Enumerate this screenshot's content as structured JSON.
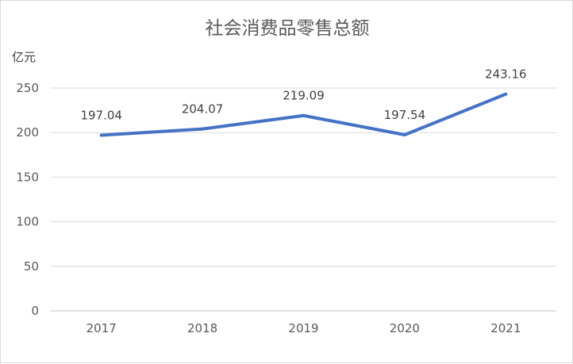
{
  "chart_data": {
    "type": "line",
    "title": "社会消费品零售总额",
    "ylabel": "亿元",
    "xlabel": "",
    "categories": [
      "2017",
      "2018",
      "2019",
      "2020",
      "2021"
    ],
    "series": [
      {
        "values": [
          197.04,
          204.07,
          219.09,
          197.54,
          243.16
        ],
        "data_labels": [
          "197.04",
          "204.07",
          "219.09",
          "197.54",
          "243.16"
        ],
        "color": "#4472c4"
      }
    ],
    "ylim": [
      0,
      250
    ],
    "yticks": [
      0,
      50,
      100,
      150,
      200,
      250
    ],
    "grid": true,
    "legend": "none"
  }
}
